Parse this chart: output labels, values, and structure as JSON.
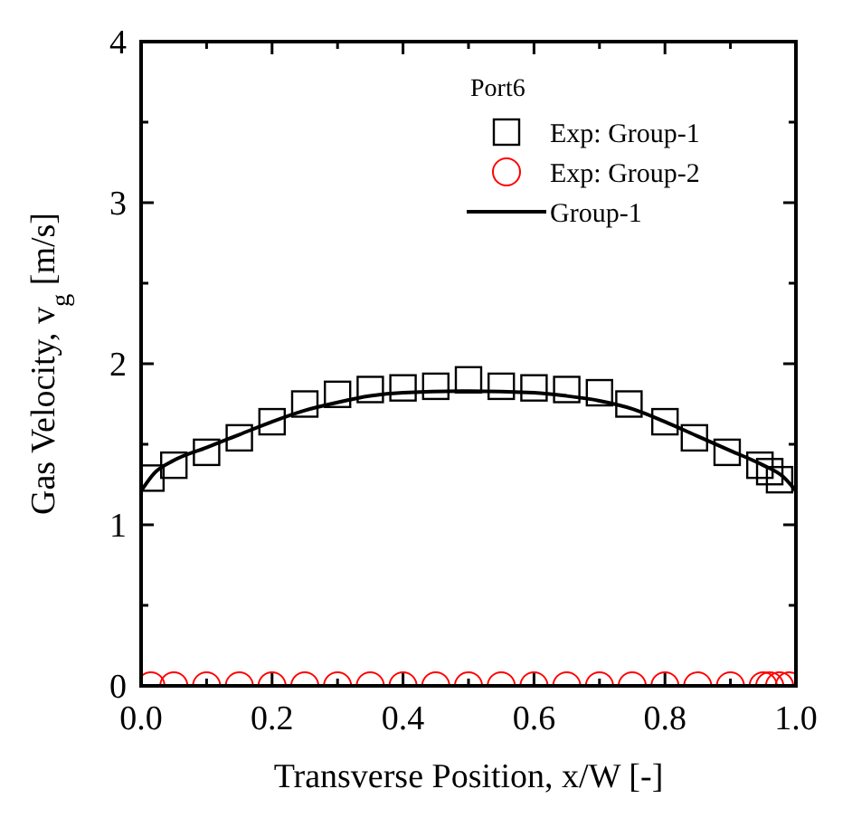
{
  "chart_data": {
    "type": "scatter",
    "xlabel": "Transverse Position,  x/W  [-]",
    "ylabel": "Gas Velocity,  v$_{g}$  [m/s]",
    "legend_title": "Port6",
    "legend": "top right",
    "grid": false,
    "xlim": [
      0,
      1
    ],
    "ylim": [
      0,
      4
    ],
    "xticks": [
      {
        "value": 0,
        "label": "0.0"
      },
      {
        "value": 0.1,
        "label": null
      },
      {
        "value": 0.2,
        "label": "0.2"
      },
      {
        "value": 0.3,
        "label": null
      },
      {
        "value": 0.4,
        "label": "0.4"
      },
      {
        "value": 0.5,
        "label": null
      },
      {
        "value": 0.6,
        "label": "0.6"
      },
      {
        "value": 0.7,
        "label": null
      },
      {
        "value": 0.8,
        "label": "0.8"
      },
      {
        "value": 0.9,
        "label": null
      },
      {
        "value": 1,
        "label": "1.0"
      }
    ],
    "yticks": [
      0,
      {
        "value": 0.5,
        "label": null
      },
      1,
      {
        "value": 1.5,
        "label": null
      },
      2,
      {
        "value": 2.5,
        "label": null
      },
      3,
      {
        "value": 3.5,
        "label": null
      },
      4
    ],
    "series": [
      {
        "name": "Exp: Group-1",
        "marker": "square",
        "color": "#000000",
        "x": [
          0.015,
          0.05,
          0.1,
          0.15,
          0.2,
          0.25,
          0.3,
          0.35,
          0.4,
          0.45,
          0.5,
          0.55,
          0.6,
          0.65,
          0.7,
          0.745,
          0.8,
          0.845,
          0.895,
          0.945,
          0.96,
          0.975
        ],
        "values": [
          1.29,
          1.37,
          1.45,
          1.54,
          1.64,
          1.75,
          1.81,
          1.84,
          1.85,
          1.86,
          1.9,
          1.86,
          1.85,
          1.84,
          1.82,
          1.75,
          1.64,
          1.54,
          1.45,
          1.37,
          1.33,
          1.28
        ]
      },
      {
        "name": "Exp: Group-2",
        "marker": "circle",
        "color": "#ff0000",
        "x": [
          0.015,
          0.05,
          0.1,
          0.15,
          0.2,
          0.25,
          0.3,
          0.35,
          0.4,
          0.45,
          0.5,
          0.55,
          0.6,
          0.65,
          0.7,
          0.75,
          0.8,
          0.85,
          0.9,
          0.95,
          0.96,
          0.975,
          0.99
        ],
        "values": [
          0,
          0,
          0,
          0,
          0,
          0,
          0,
          0,
          0,
          0,
          0,
          0,
          0,
          0,
          0,
          0,
          0,
          0,
          0,
          0,
          0,
          0,
          0
        ]
      },
      {
        "name": "Group-1",
        "type": "line",
        "line_style": "solid",
        "color": "#000000",
        "x": [
          0,
          0.02,
          0.05,
          0.1,
          0.15,
          0.2,
          0.25,
          0.3,
          0.35,
          0.4,
          0.5,
          0.6,
          0.65,
          0.7,
          0.75,
          0.8,
          0.85,
          0.9,
          0.95,
          0.98,
          1.0
        ],
        "values": [
          1.21,
          1.32,
          1.4,
          1.48,
          1.56,
          1.64,
          1.71,
          1.76,
          1.8,
          1.82,
          1.83,
          1.82,
          1.8,
          1.77,
          1.72,
          1.64,
          1.55,
          1.46,
          1.37,
          1.3,
          1.21
        ]
      }
    ]
  }
}
